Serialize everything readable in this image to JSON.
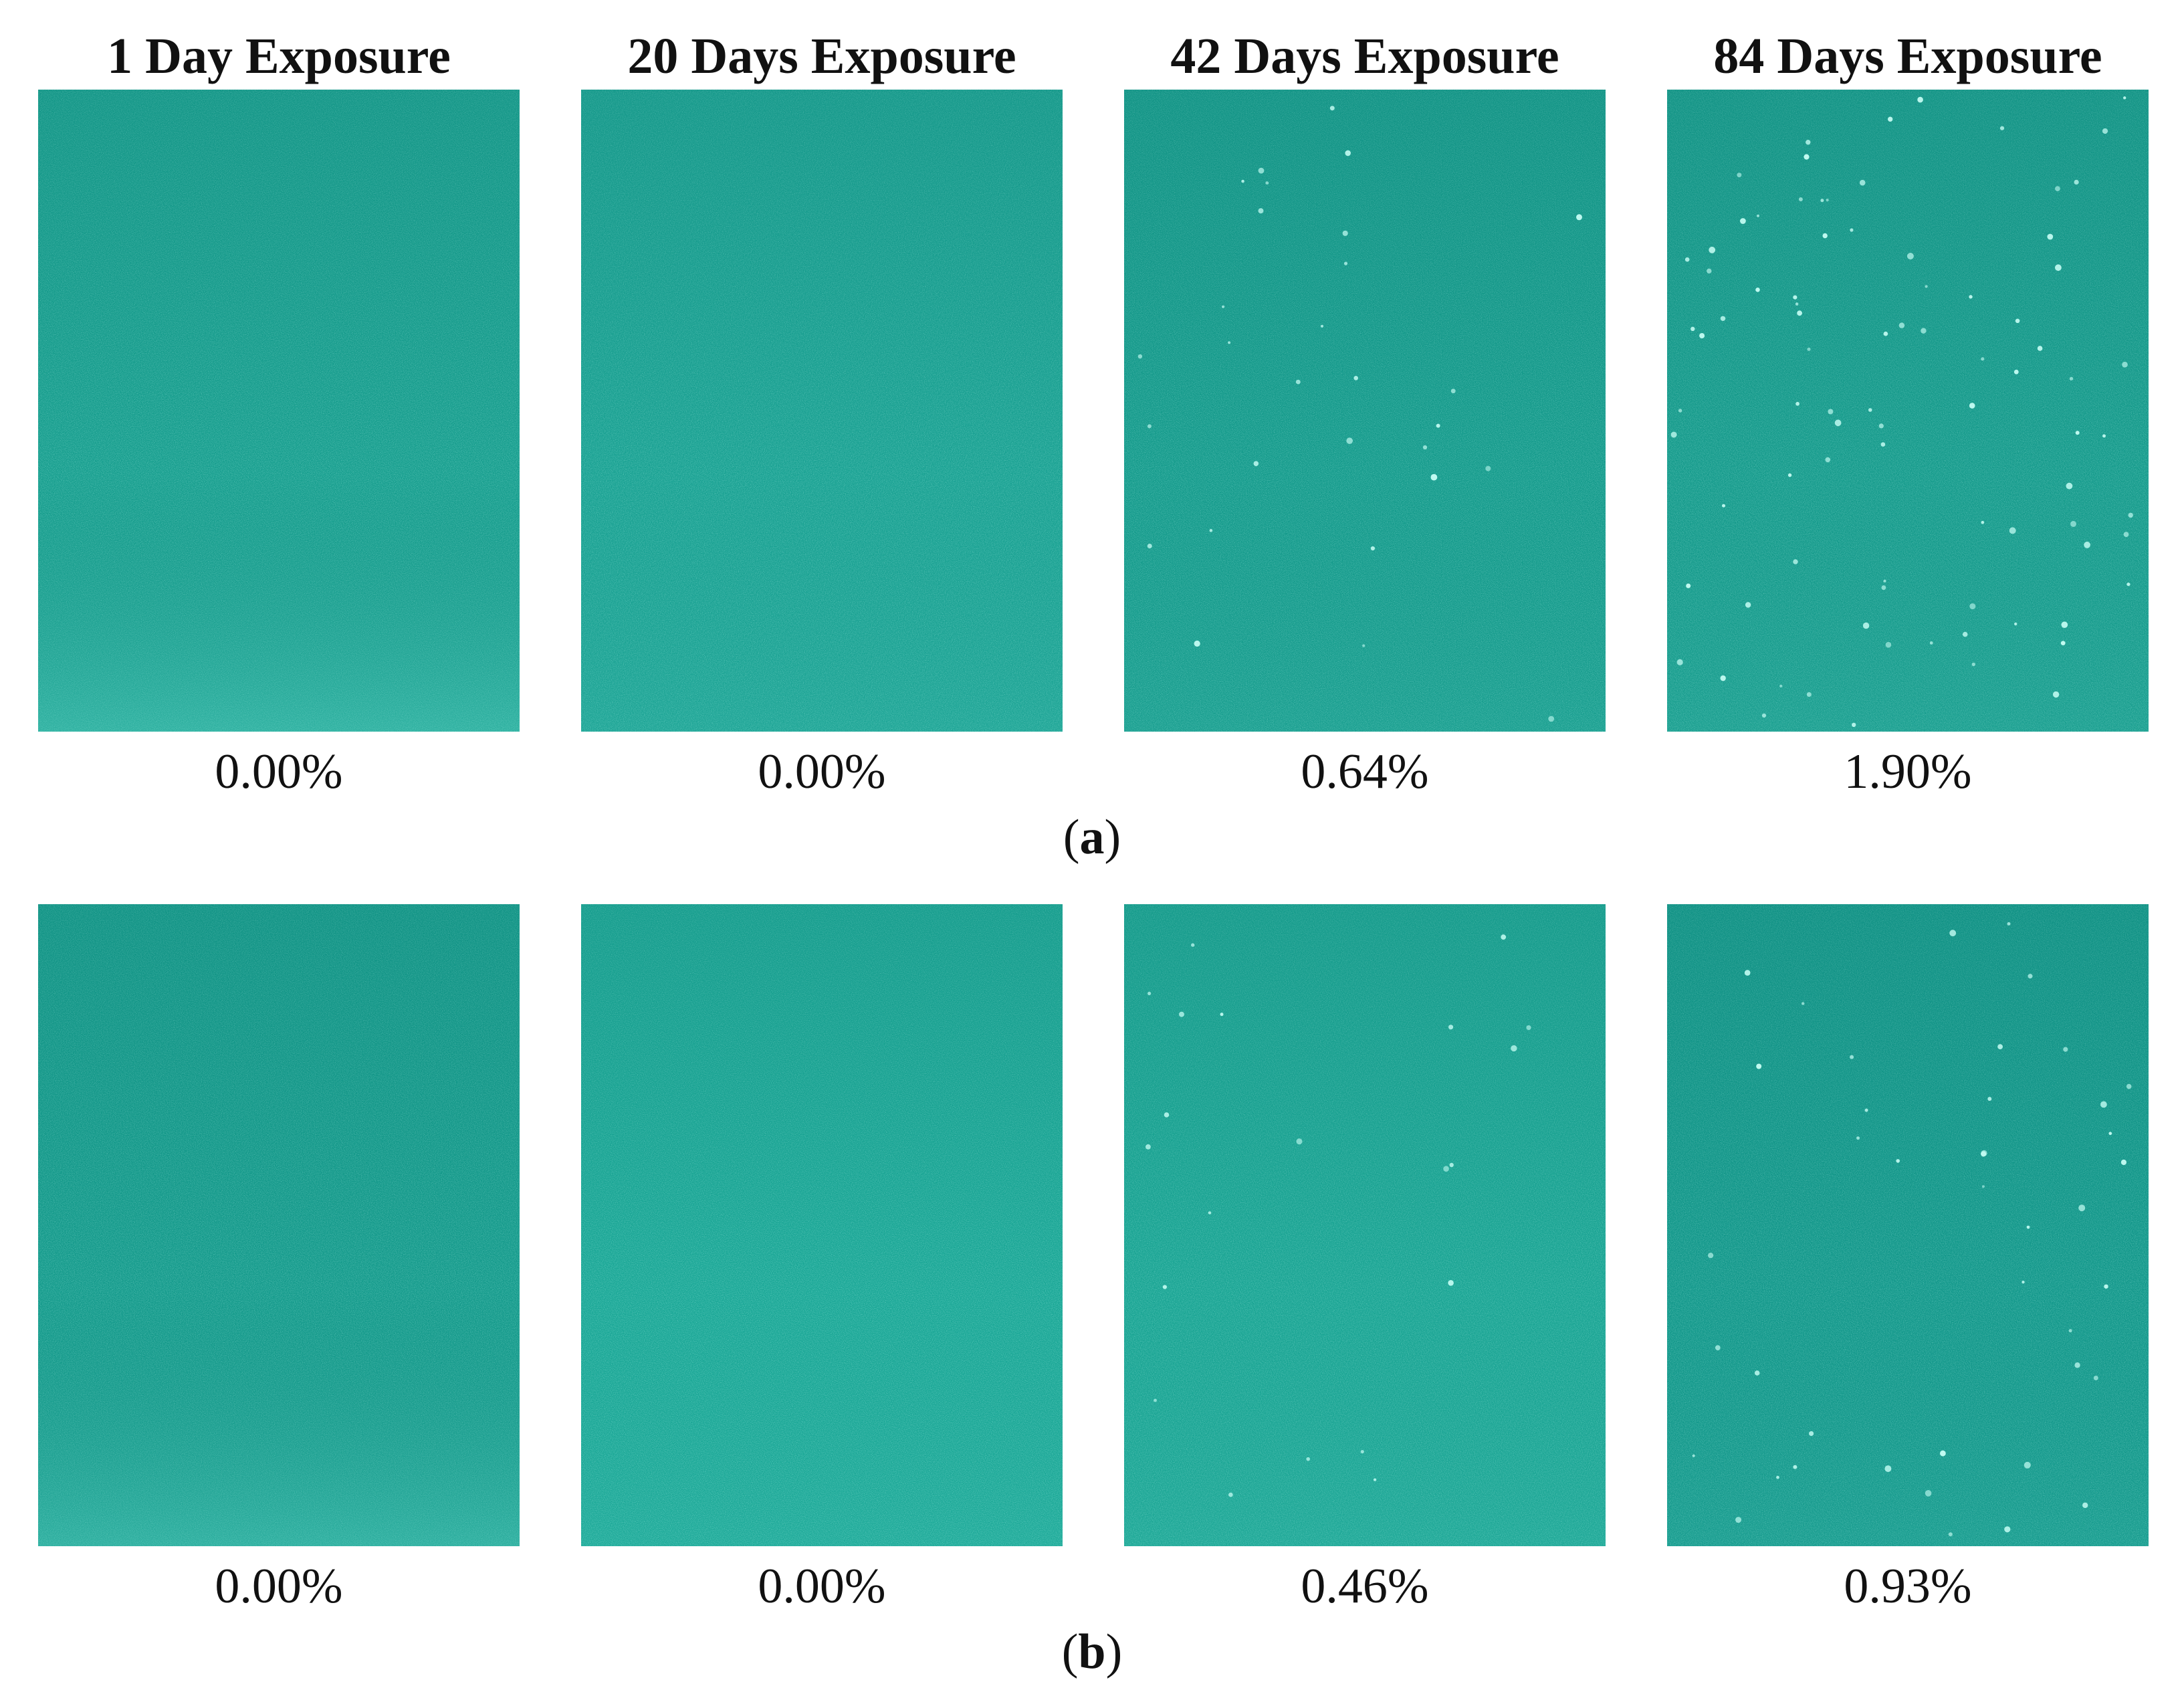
{
  "columns": [
    {
      "title": "1 Day Exposure"
    },
    {
      "title": "20 Days Exposure"
    },
    {
      "title": "42 Days Exposure"
    },
    {
      "title": "84 Days Exposure"
    }
  ],
  "rows": [
    {
      "label_open": "(",
      "label_letter": "a",
      "label_close": ")",
      "panels": [
        {
          "percent": "0.00%",
          "base_color": "#169e8e",
          "speck_level": 0.0,
          "grain_light": true
        },
        {
          "percent": "0.00%",
          "base_color": "#18a192",
          "speck_level": 0.0,
          "grain_light": false
        },
        {
          "percent": "0.64%",
          "base_color": "#139a8b",
          "speck_level": 0.64,
          "grain_light": false
        },
        {
          "percent": "1.90%",
          "base_color": "#149a8b",
          "speck_level": 1.9,
          "grain_light": false
        }
      ]
    },
    {
      "label_open": "(",
      "label_letter": "b",
      "label_close": ")",
      "panels": [
        {
          "percent": "0.00%",
          "base_color": "#139a8b",
          "speck_level": 0.0,
          "grain_light": true
        },
        {
          "percent": "0.00%",
          "base_color": "#19a796",
          "speck_level": 0.0,
          "grain_light": false
        },
        {
          "percent": "0.46%",
          "base_color": "#18a493",
          "speck_level": 0.46,
          "grain_light": false
        },
        {
          "percent": "0.93%",
          "base_color": "#11978a",
          "speck_level": 0.93,
          "grain_light": false
        }
      ]
    }
  ]
}
